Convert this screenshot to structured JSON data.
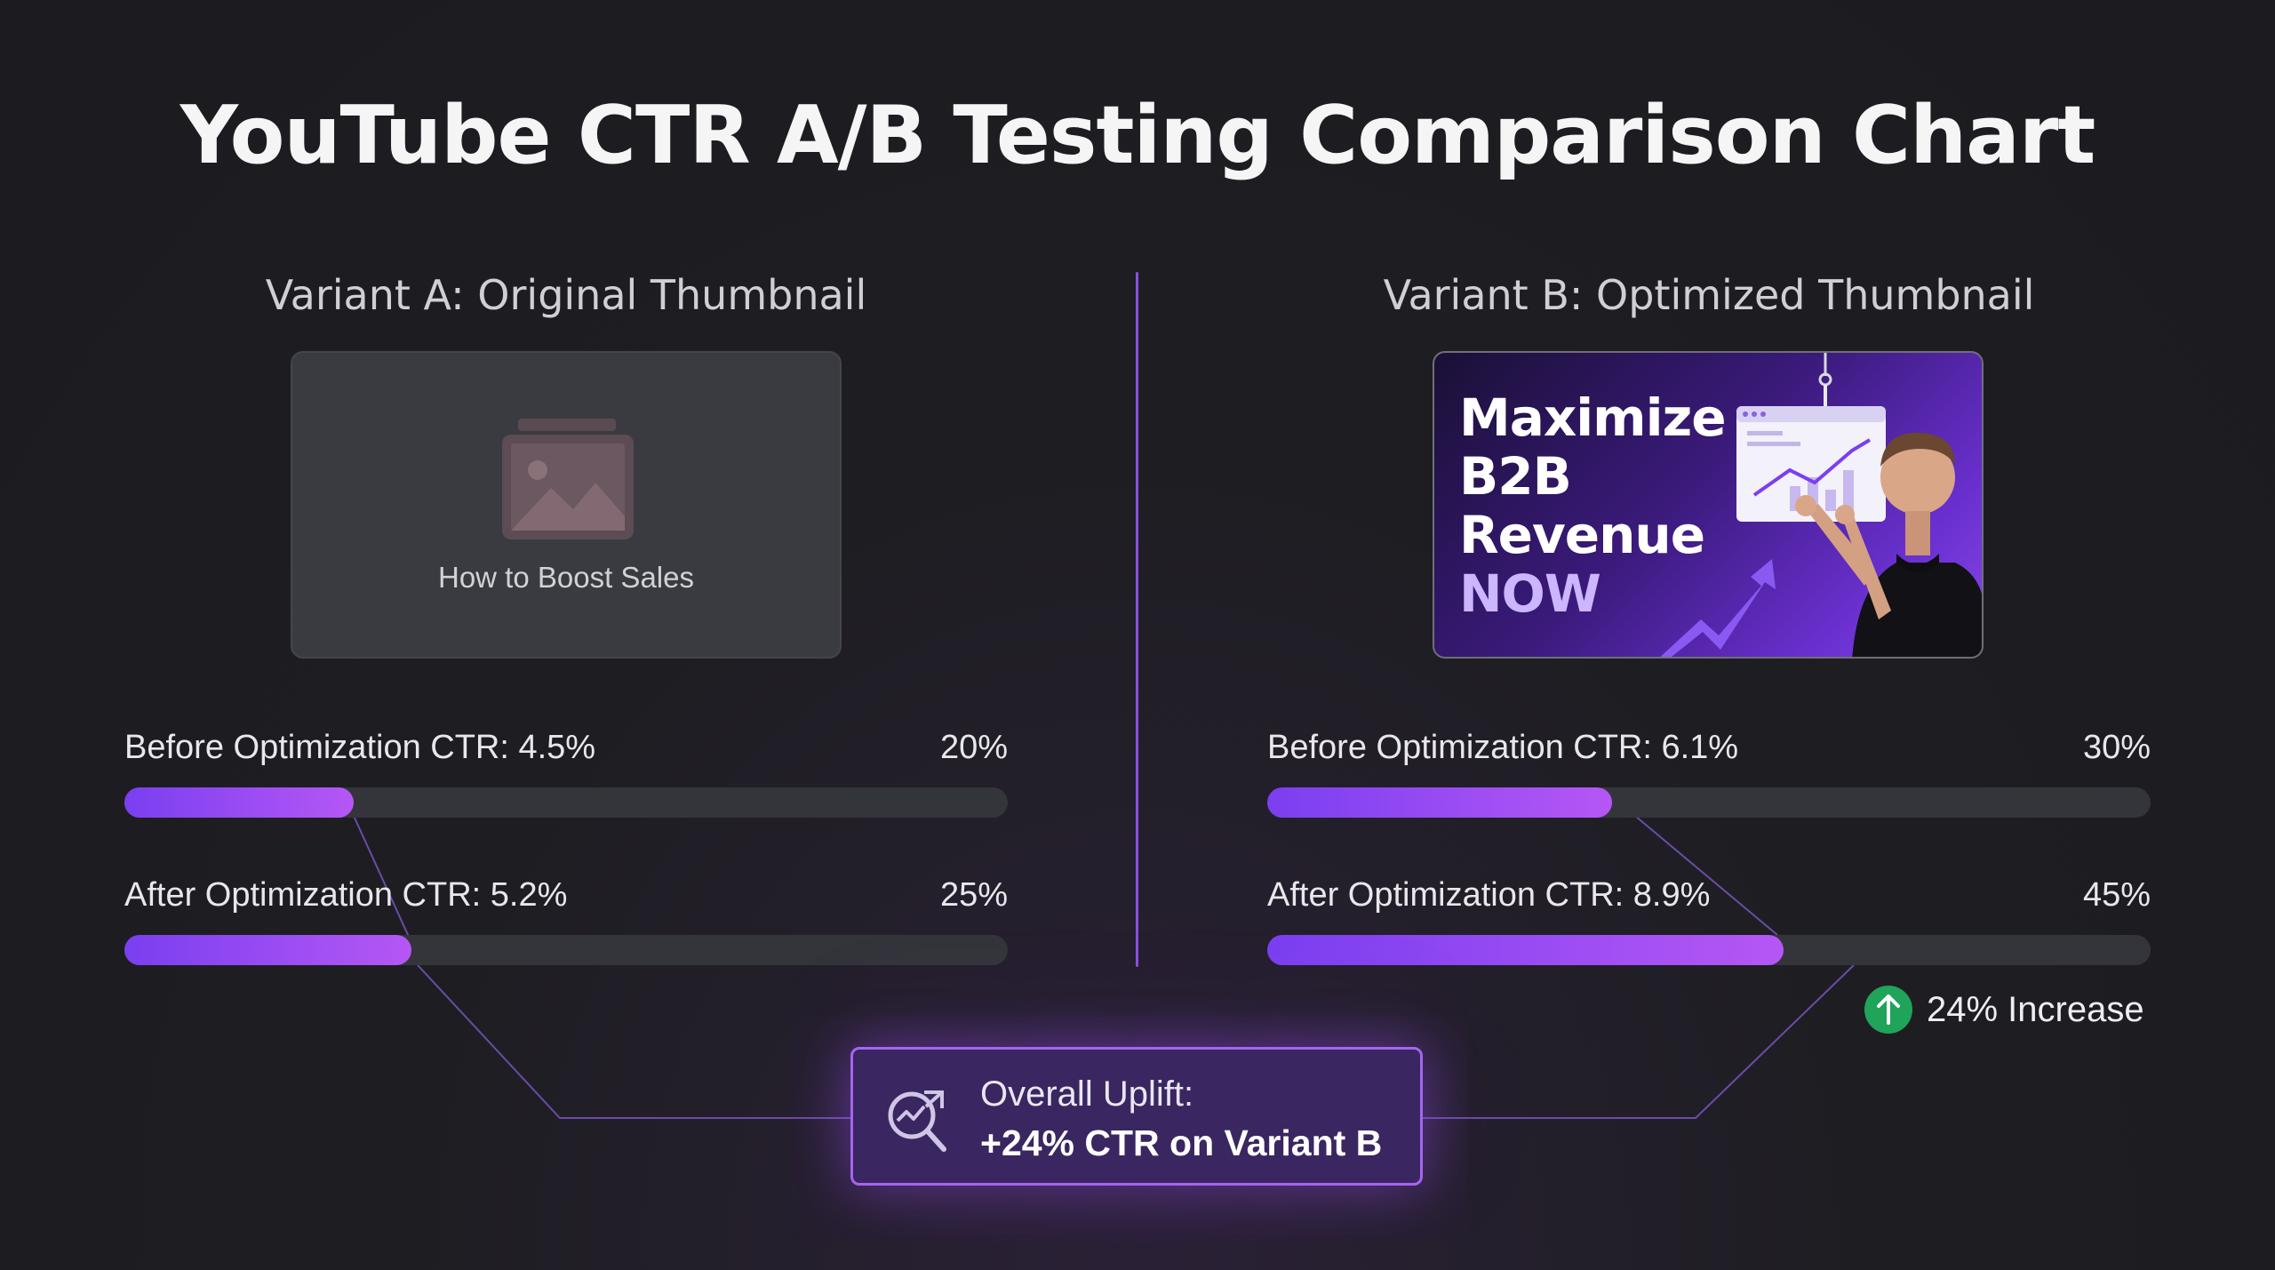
{
  "title": "YouTube CTR A/B Testing Comparison Chart",
  "variant_a": {
    "title": "Variant A: Original Thumbnail",
    "thumbnail_caption": "How to Boost Sales",
    "thumbnail_icon": "image-placeholder-icon"
  },
  "variant_b": {
    "title": "Variant B: Optimized Thumbnail",
    "thumbnail_lines": [
      "Maximize",
      "B2B",
      "Revenue",
      "NOW"
    ],
    "increase_label": "24% Increase",
    "increase_icon": "arrow-up-icon"
  },
  "uplift": {
    "line1": "Overall Uplift:",
    "line2": "+24% CTR on Variant B",
    "icon": "analytics-search-icon"
  },
  "colors": {
    "accent": "#9b4ff0",
    "bar_start": "#7a3ff0",
    "bar_end": "#b557f5",
    "track": "#34353b",
    "increase": "#1fa45a"
  },
  "chart_data": {
    "type": "bar",
    "orientation": "horizontal",
    "title": "YouTube CTR A/B Testing Comparison Chart",
    "xlim": [
      0,
      100
    ],
    "grid": false,
    "groups": [
      {
        "name": "Variant A: Original Thumbnail",
        "bars": [
          {
            "label": "Before Optimization CTR: 4.5%",
            "value": 20,
            "value_label": "20%"
          },
          {
            "label": "After Optimization CTR: 5.2%",
            "value": 25,
            "value_label": "25%"
          }
        ]
      },
      {
        "name": "Variant B: Optimized Thumbnail",
        "bars": [
          {
            "label": "Before Optimization CTR: 6.1%",
            "value": 30,
            "value_label": "30%"
          },
          {
            "label": "After Optimization CTR: 8.9%",
            "value": 45,
            "value_label": "45%"
          }
        ]
      }
    ],
    "annotations": [
      "24% Increase",
      "Overall Uplift:",
      "+24% CTR on Variant B"
    ]
  }
}
